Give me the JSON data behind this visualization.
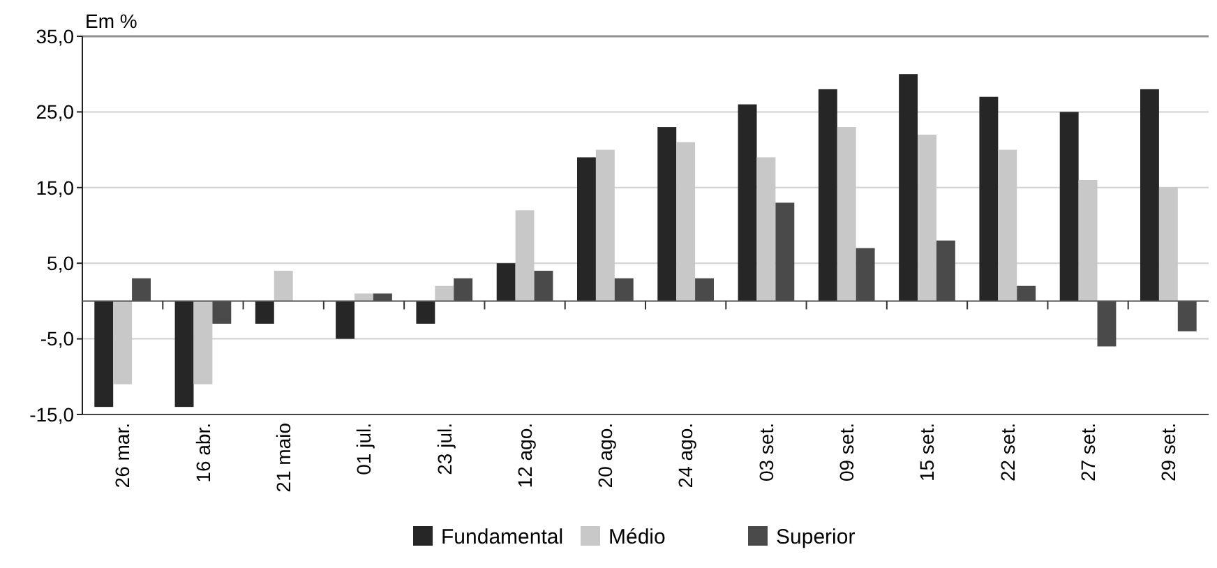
{
  "chart_data": {
    "type": "bar",
    "ylabel": "Em %",
    "categories": [
      "26 mar.",
      "16 abr.",
      "21 maio",
      "01 jul.",
      "23 jul.",
      "12 ago.",
      "20 ago.",
      "24 ago.",
      "03 set.",
      "09 set.",
      "15 set.",
      "22 set.",
      "27 set.",
      "29 set."
    ],
    "series": [
      {
        "name": "Fundamental",
        "color": "#262626",
        "values": [
          -14,
          -14,
          -3,
          -5,
          -3,
          5,
          19,
          23,
          26,
          28,
          30,
          27,
          25,
          28
        ]
      },
      {
        "name": "Médio",
        "color": "#c8c8c8",
        "values": [
          -11,
          -11,
          4,
          1,
          2,
          12,
          20,
          21,
          19,
          23,
          22,
          20,
          16,
          15
        ]
      },
      {
        "name": "Superior",
        "color": "#4a4a4a",
        "values": [
          3,
          -3,
          0,
          1,
          3,
          4,
          3,
          3,
          13,
          7,
          8,
          2,
          -6,
          -4
        ]
      }
    ],
    "ylim": [
      -15,
      35
    ],
    "yticks": [
      {
        "value": 35,
        "label": "35,0"
      },
      {
        "value": 25,
        "label": "25,0"
      },
      {
        "value": 15,
        "label": "15,0"
      },
      {
        "value": 5,
        "label": "5,0"
      },
      {
        "value": -5,
        "label": "-5,0"
      },
      {
        "value": -15,
        "label": "-15,0"
      }
    ],
    "grid": "y",
    "legend": "bottom"
  }
}
